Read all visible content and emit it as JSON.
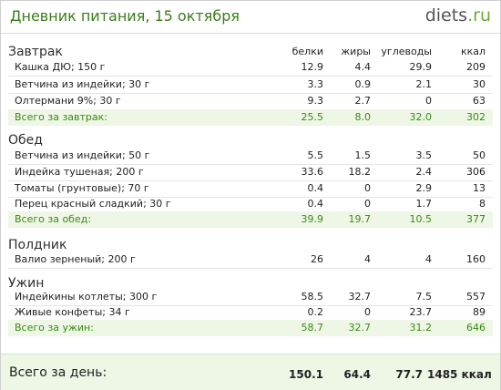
{
  "header": {
    "title": "Дневник питания, 15 октября",
    "logo_main": "diets",
    "logo_tld": ".ru"
  },
  "columns": [
    "белки",
    "жиры",
    "углеводы",
    "ккал"
  ],
  "sections": [
    {
      "name": "Завтрак",
      "items": [
        {
          "label": "Кашка ДЮ; 150 г",
          "values": [
            "12.9",
            "4.4",
            "29.9",
            "209"
          ]
        },
        {
          "label": "Ветчина из индейки; 30 г",
          "values": [
            "3.3",
            "0.9",
            "2.1",
            "30"
          ]
        },
        {
          "label": "Олтермани 9%; 30 г",
          "values": [
            "9.3",
            "2.7",
            "0",
            "63"
          ]
        }
      ],
      "total": {
        "label": "Всего за завтрак:",
        "values": [
          "25.5",
          "8.0",
          "32.0",
          "302"
        ]
      }
    },
    {
      "name": "Обед",
      "items": [
        {
          "label": "Ветчина из индейки; 50 г",
          "values": [
            "5.5",
            "1.5",
            "3.5",
            "50"
          ]
        },
        {
          "label": "Индейка тушеная; 200 г",
          "values": [
            "33.6",
            "18.2",
            "2.4",
            "306"
          ]
        },
        {
          "label": "Томаты (грунтовые); 70 г",
          "values": [
            "0.4",
            "0",
            "2.9",
            "13"
          ]
        },
        {
          "label": "Перец красный сладкий; 30 г",
          "values": [
            "0.4",
            "0",
            "1.7",
            "8"
          ]
        }
      ],
      "total": {
        "label": "Всего за обед:",
        "values": [
          "39.9",
          "19.7",
          "10.5",
          "377"
        ]
      }
    },
    {
      "name": "Полдник",
      "items": [
        {
          "label": "Валио зерненый; 200 г",
          "values": [
            "26",
            "4",
            "4",
            "160"
          ]
        }
      ],
      "total": null
    },
    {
      "name": "Ужин",
      "items": [
        {
          "label": "Индейкины котлеты; 300 г",
          "values": [
            "58.5",
            "32.7",
            "7.5",
            "557"
          ]
        },
        {
          "label": "Живые конфеты; 34 г",
          "values": [
            "0.2",
            "0",
            "23.7",
            "89"
          ]
        }
      ],
      "total": {
        "label": "Всего за ужин:",
        "values": [
          "58.7",
          "32.7",
          "31.2",
          "646"
        ]
      }
    }
  ],
  "day_total": {
    "label": "Всего за день:",
    "values": [
      "150.1",
      "64.4",
      "77.7",
      "1485 ккал"
    ]
  },
  "colors": {
    "title": "#3a7d1a",
    "total_text": "#3b8a12",
    "total_bg": "#eef6e6",
    "logo_tld": "#6aab2e"
  }
}
